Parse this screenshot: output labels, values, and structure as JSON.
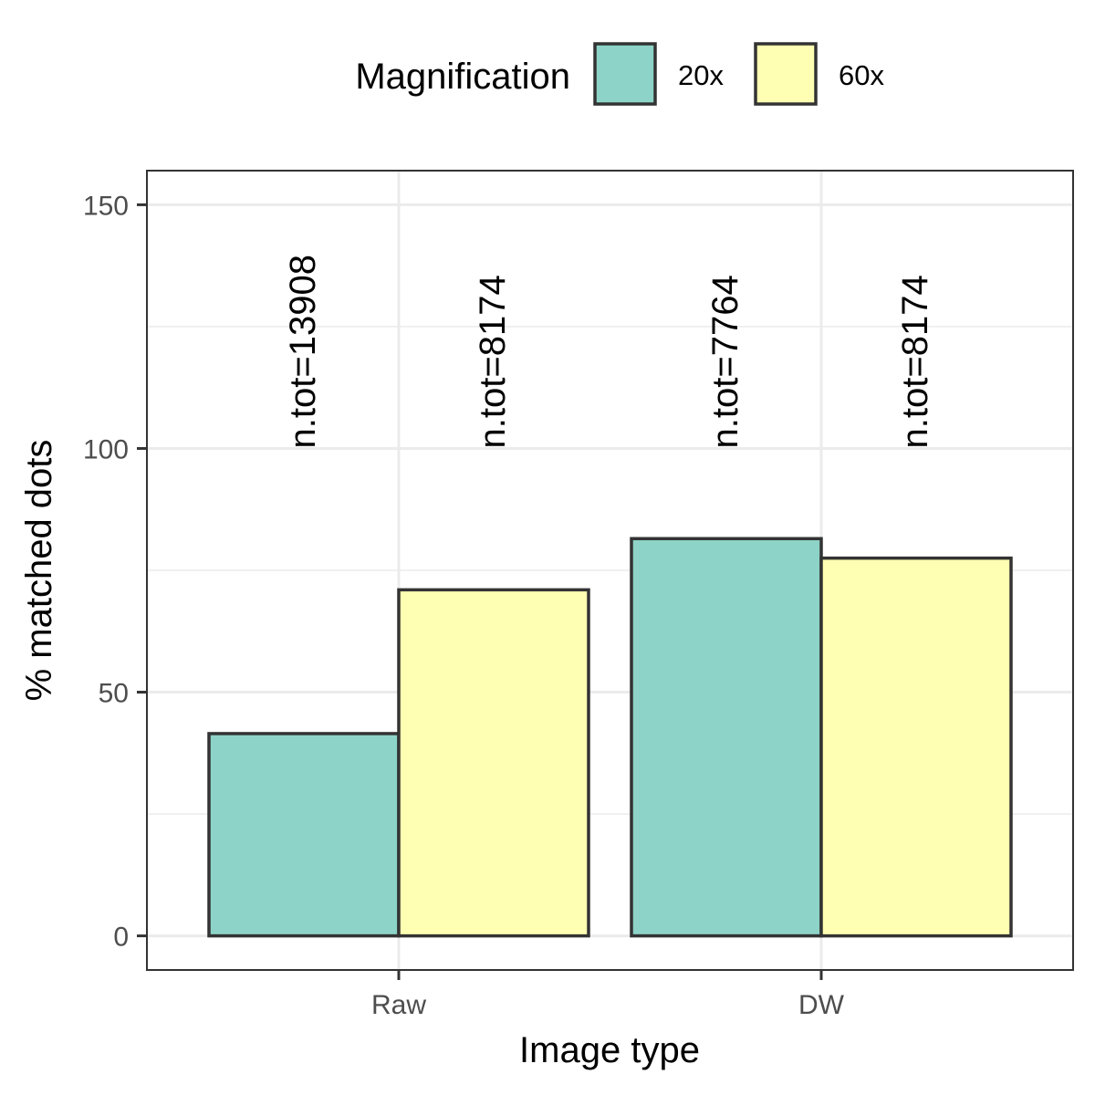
{
  "chart_data": {
    "type": "bar",
    "categories": [
      "Raw",
      "DW"
    ],
    "series": [
      {
        "name": "20x",
        "values": [
          41.5,
          81.5
        ],
        "color": "#8DD3C7",
        "labels": [
          "n.tot=13908",
          "n.tot=7764"
        ]
      },
      {
        "name": "60x",
        "values": [
          71,
          77.5
        ],
        "color": "#FFFFB3",
        "labels": [
          "n.tot=8174",
          "n.tot=8174"
        ]
      }
    ],
    "legend": {
      "title": "Magnification",
      "position": "top"
    },
    "xlabel": "Image type",
    "ylabel": "% matched dots",
    "ylim": [
      -7,
      157
    ],
    "yticks": [
      0,
      50,
      100,
      150
    ],
    "ytick_labels": [
      "0",
      "50",
      "100",
      "150"
    ],
    "bar_label_y": 100,
    "grid": true,
    "colors": {
      "grid": "#EBEBEB",
      "panel_border": "#333333",
      "bar_outline": "#333333"
    }
  }
}
